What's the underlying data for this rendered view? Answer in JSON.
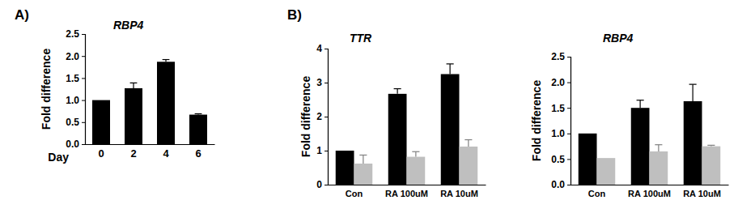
{
  "chart_data": [
    {
      "type": "bar",
      "title": "RBP4",
      "annotations": [
        "A)"
      ],
      "ylabel": "Fold difference",
      "xlabel": "Day",
      "categories": [
        "0",
        "2",
        "4",
        "6"
      ],
      "series": [
        {
          "color": "#000000",
          "values": [
            1.0,
            1.27,
            1.87,
            0.67
          ],
          "errors": [
            0,
            0.12,
            0.05,
            0.02
          ]
        }
      ],
      "ylim": [
        0,
        2.5
      ],
      "yticks": [
        {
          "value": 0,
          "label": "0.0"
        },
        {
          "value": 0.5,
          "label": "0.5"
        },
        {
          "value": 1,
          "label": "1.0"
        },
        {
          "value": 1.5,
          "label": "1.5"
        },
        {
          "value": 2,
          "label": "2.0"
        },
        {
          "value": 2.5,
          "label": "2.5"
        }
      ]
    },
    {
      "type": "bar",
      "title": "TTR",
      "annotations": [
        "B)"
      ],
      "ylabel": "Fold difference",
      "categories": [
        "Con",
        "RA 100uM",
        "RA 10uM"
      ],
      "series": [
        {
          "color": "#000000",
          "values": [
            1.0,
            2.67,
            3.25
          ],
          "errors": [
            0,
            0.15,
            0.3
          ]
        },
        {
          "color": "#bfbfbf",
          "values": [
            0.62,
            0.82,
            1.12
          ],
          "errors": [
            0.25,
            0.15,
            0.2
          ]
        }
      ],
      "ylim": [
        0,
        4
      ],
      "yticks": [
        0,
        1,
        2,
        3,
        4
      ]
    },
    {
      "type": "bar",
      "title": "RBP4",
      "ylabel": "Fold difference",
      "categories": [
        "Con",
        "RA 100uM",
        "RA 10uM"
      ],
      "series": [
        {
          "color": "#000000",
          "values": [
            1.0,
            1.5,
            1.63
          ],
          "errors": [
            0,
            0.15,
            0.33
          ]
        },
        {
          "color": "#bfbfbf",
          "values": [
            0.52,
            0.65,
            0.75
          ],
          "errors": [
            0,
            0.13,
            0.02
          ]
        }
      ],
      "ylim": [
        0,
        2.5
      ],
      "yticks": [
        {
          "value": 0,
          "label": "0.0"
        },
        {
          "value": 0.5,
          "label": "0.5"
        },
        {
          "value": 1,
          "label": "1.0"
        },
        {
          "value": 1.5,
          "label": "1.5"
        },
        {
          "value": 2,
          "label": "2.0"
        },
        {
          "value": 2.5,
          "label": "2.5"
        }
      ]
    }
  ]
}
